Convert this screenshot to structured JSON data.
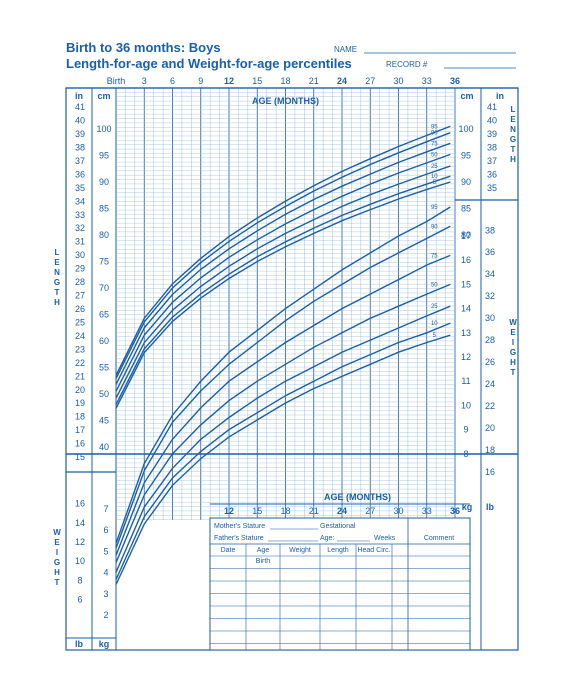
{
  "chart_data": {
    "type": "line",
    "title": "Birth to 36 months: Boys",
    "subtitle": "Length-for-age and Weight-for-age percentiles",
    "header": {
      "name_label": "NAME",
      "record_label": "RECORD #"
    },
    "colors": {
      "primary": "#1a5fa8",
      "grid": "#8ab4dc"
    },
    "age_axis": {
      "label": "AGE (MONTHS)",
      "xlim": [
        0,
        36
      ],
      "tick_labels": [
        {
          "m": 0,
          "t": "Birth"
        },
        {
          "m": 3,
          "t": "3"
        },
        {
          "m": 6,
          "t": "6"
        },
        {
          "m": 9,
          "t": "9"
        },
        {
          "m": 12,
          "t": "12"
        },
        {
          "m": 15,
          "t": "15"
        },
        {
          "m": 18,
          "t": "18"
        },
        {
          "m": 21,
          "t": "21"
        },
        {
          "m": 24,
          "t": "24"
        },
        {
          "m": 27,
          "t": "27"
        },
        {
          "m": 30,
          "t": "30"
        },
        {
          "m": 33,
          "t": "33"
        },
        {
          "m": 36,
          "t": "36"
        }
      ],
      "lower_tick_labels": [
        {
          "m": 12,
          "t": "12"
        },
        {
          "m": 15,
          "t": "15"
        },
        {
          "m": 18,
          "t": "18"
        },
        {
          "m": 21,
          "t": "21"
        },
        {
          "m": 24,
          "t": "24"
        },
        {
          "m": 27,
          "t": "27"
        },
        {
          "m": 30,
          "t": "30"
        },
        {
          "m": 33,
          "t": "33"
        },
        {
          "m": 36,
          "t": "36"
        }
      ]
    },
    "length_axis": {
      "side_label": "LENGTH",
      "unit_in": "in",
      "unit_cm": "cm",
      "in_ticks": [
        "41",
        "40",
        "39",
        "38",
        "37",
        "36",
        "35",
        "34",
        "33",
        "32",
        "31",
        "30",
        "29",
        "28",
        "27",
        "26",
        "25",
        "24",
        "23",
        "22",
        "21",
        "20",
        "19",
        "18",
        "17",
        "16",
        "15"
      ],
      "cm_ticks": [
        "100",
        "95",
        "90",
        "85",
        "80",
        "75",
        "70",
        "65",
        "60",
        "55",
        "50",
        "45",
        "40"
      ],
      "right_cm_ticks": [
        "100",
        "95",
        "90",
        "85",
        "80"
      ],
      "right_in_ticks": [
        "41",
        "40",
        "39",
        "38",
        "37",
        "36",
        "35"
      ]
    },
    "weight_axis": {
      "side_label": "WEIGHT",
      "unit_lb": "lb",
      "unit_kg": "kg",
      "right_lb_ticks": [
        "38",
        "36",
        "34",
        "32",
        "30",
        "28",
        "26",
        "24",
        "22",
        "20",
        "18",
        "16"
      ],
      "right_kg_ticks": [
        "17",
        "16",
        "15",
        "14",
        "13",
        "12",
        "11",
        "10",
        "9",
        "8"
      ],
      "left_lb_ticks": [
        "16",
        "14",
        "12",
        "10",
        "8",
        "6"
      ],
      "left_kg_ticks": [
        "7",
        "6",
        "5",
        "4",
        "3",
        "2"
      ]
    },
    "percentile_labels": [
      "95",
      "90",
      "75",
      "50",
      "25",
      "10",
      "5"
    ],
    "length_series": [
      {
        "name": "95",
        "x": [
          0,
          3,
          6,
          9,
          12,
          15,
          18,
          21,
          24,
          27,
          30,
          33,
          35.5
        ],
        "y": [
          53.5,
          64.3,
          70.8,
          75.6,
          79.7,
          83.2,
          86.4,
          89.3,
          92.0,
          94.4,
          96.7,
          98.8,
          100.5
        ]
      },
      {
        "name": "90",
        "x": [
          0,
          3,
          6,
          9,
          12,
          15,
          18,
          21,
          24,
          27,
          30,
          33,
          35.5
        ],
        "y": [
          52.9,
          63.6,
          70.0,
          74.8,
          78.8,
          82.3,
          85.4,
          88.3,
          90.9,
          93.3,
          95.5,
          97.6,
          99.3
        ]
      },
      {
        "name": "75",
        "x": [
          0,
          3,
          6,
          9,
          12,
          15,
          18,
          21,
          24,
          27,
          30,
          33,
          35.5
        ],
        "y": [
          51.8,
          62.5,
          68.8,
          73.5,
          77.4,
          80.8,
          83.9,
          86.7,
          89.2,
          91.5,
          93.7,
          95.7,
          97.3
        ]
      },
      {
        "name": "50",
        "x": [
          0,
          3,
          6,
          9,
          12,
          15,
          18,
          21,
          24,
          27,
          30,
          33,
          35.5
        ],
        "y": [
          50.5,
          61.1,
          67.3,
          71.9,
          75.8,
          79.1,
          82.1,
          84.8,
          87.3,
          89.6,
          91.7,
          93.6,
          95.2
        ]
      },
      {
        "name": "25",
        "x": [
          0,
          3,
          6,
          9,
          12,
          15,
          18,
          21,
          24,
          27,
          30,
          33,
          35.5
        ],
        "y": [
          49.2,
          59.7,
          65.8,
          70.3,
          74.1,
          77.4,
          80.3,
          82.9,
          85.4,
          87.6,
          89.6,
          91.5,
          93.0
        ]
      },
      {
        "name": "10",
        "x": [
          0,
          3,
          6,
          9,
          12,
          15,
          18,
          21,
          24,
          27,
          30,
          33,
          35.5
        ],
        "y": [
          48.0,
          58.5,
          64.5,
          68.9,
          72.6,
          75.9,
          78.7,
          81.3,
          83.7,
          85.8,
          87.8,
          89.6,
          91.1
        ]
      },
      {
        "name": "5",
        "x": [
          0,
          3,
          6,
          9,
          12,
          15,
          18,
          21,
          24,
          27,
          30,
          33,
          35.5
        ],
        "y": [
          47.3,
          57.8,
          63.7,
          68.1,
          71.8,
          75.0,
          77.8,
          80.3,
          82.7,
          84.8,
          86.8,
          88.6,
          90.0
        ]
      }
    ],
    "weight_series": [
      {
        "name": "95",
        "x": [
          0,
          3,
          6,
          9,
          12,
          15,
          18,
          21,
          24,
          27,
          30,
          33,
          35.5
        ],
        "y": [
          4.3,
          7.6,
          9.6,
          11.0,
          12.2,
          13.1,
          14.0,
          14.8,
          15.6,
          16.3,
          17.0,
          17.6,
          18.2
        ]
      },
      {
        "name": "90",
        "x": [
          0,
          3,
          6,
          9,
          12,
          15,
          18,
          21,
          24,
          27,
          30,
          33,
          35.5
        ],
        "y": [
          4.1,
          7.3,
          9.3,
          10.6,
          11.7,
          12.6,
          13.5,
          14.3,
          15.0,
          15.7,
          16.3,
          16.9,
          17.4
        ]
      },
      {
        "name": "75",
        "x": [
          0,
          3,
          6,
          9,
          12,
          15,
          18,
          21,
          24,
          27,
          30,
          33,
          35.5
        ],
        "y": [
          3.8,
          6.8,
          8.6,
          9.9,
          11.0,
          11.8,
          12.6,
          13.3,
          14.0,
          14.6,
          15.2,
          15.8,
          16.2
        ]
      },
      {
        "name": "50",
        "x": [
          0,
          3,
          6,
          9,
          12,
          15,
          18,
          21,
          24,
          27,
          30,
          33,
          35.5
        ],
        "y": [
          3.5,
          6.3,
          8.0,
          9.2,
          10.2,
          11.0,
          11.7,
          12.4,
          13.0,
          13.6,
          14.1,
          14.6,
          15.0
        ]
      },
      {
        "name": "25",
        "x": [
          0,
          3,
          6,
          9,
          12,
          15,
          18,
          21,
          24,
          27,
          30,
          33,
          35.5
        ],
        "y": [
          3.1,
          5.8,
          7.4,
          8.6,
          9.5,
          10.3,
          11.0,
          11.6,
          12.2,
          12.7,
          13.2,
          13.7,
          14.1
        ]
      },
      {
        "name": "10",
        "x": [
          0,
          3,
          6,
          9,
          12,
          15,
          18,
          21,
          24,
          27,
          30,
          33,
          35.5
        ],
        "y": [
          2.8,
          5.4,
          7.0,
          8.1,
          9.0,
          9.7,
          10.4,
          11.0,
          11.6,
          12.1,
          12.6,
          13.0,
          13.4
        ]
      },
      {
        "name": "5",
        "x": [
          0,
          3,
          6,
          9,
          12,
          15,
          18,
          21,
          24,
          27,
          30,
          33,
          35.5
        ],
        "y": [
          2.6,
          5.1,
          6.7,
          7.8,
          8.7,
          9.4,
          10.1,
          10.7,
          11.2,
          11.7,
          12.2,
          12.6,
          12.9
        ]
      }
    ]
  },
  "form": {
    "mothers_stature": "Mother's Stature",
    "fathers_stature": "Father's Stature",
    "gestational": "Gestational",
    "age_label": "Age:",
    "weeks_label": "Weeks",
    "comment": "Comment",
    "columns": [
      "Date",
      "Age",
      "Weight",
      "Length",
      "Head  Circ."
    ],
    "birth_row": "Birth"
  }
}
